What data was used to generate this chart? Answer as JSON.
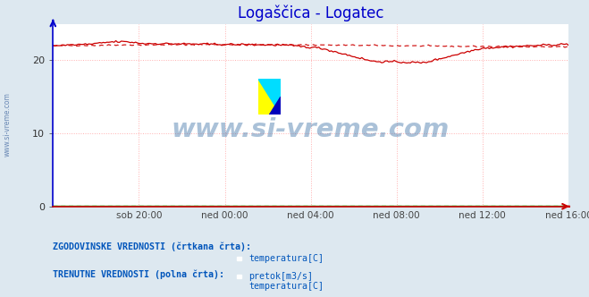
{
  "title": "Logaščica - Logatec",
  "title_color": "#0000cc",
  "title_fontsize": 12,
  "bg_color": "#dde8f0",
  "plot_bg_color": "#ffffff",
  "x_labels": [
    "sob 20:00",
    "ned 00:00",
    "ned 04:00",
    "ned 08:00",
    "ned 12:00",
    "ned 16:00"
  ],
  "ylim": [
    0,
    25
  ],
  "yticks": [
    0,
    10,
    20
  ],
  "grid_color": "#ffb0b0",
  "grid_linestyle": ":",
  "watermark_text": "www.si-vreme.com",
  "watermark_color": "#4477aa",
  "watermark_alpha": 0.45,
  "watermark_fontsize": 21,
  "temp_color": "#cc0000",
  "flow_color": "#00aa00",
  "legend_text1": "ZGODOVINSKE VREDNOSTI (črtkana črta):",
  "legend_text2": "TRENUTNE VREDNOSTI (polna črta):",
  "legend_label_temp": "temperatura[C]",
  "legend_label_flow": "pretok[m3/s]",
  "legend_color": "#0055bb",
  "sidebar_text": "www.si-vreme.com",
  "sidebar_color": "#5577aa",
  "n_points": 288,
  "flow_value": 0.03,
  "axis_color": "#0000cc",
  "xaxis_color": "#cc0000"
}
